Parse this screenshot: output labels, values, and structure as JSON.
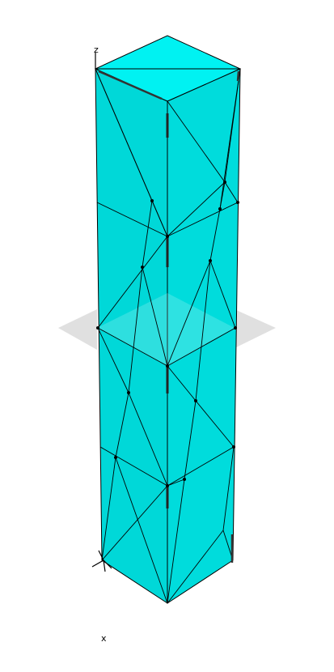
{
  "viewport": {
    "background": "#ffffff",
    "mesh_face_color": "#00d8d8",
    "mesh_top_color": "#00f0f0",
    "mesh_edge_color": "#000000",
    "plane_color": "#c8c8c8"
  },
  "axes": {
    "z_label": "z",
    "x_label": "x"
  }
}
